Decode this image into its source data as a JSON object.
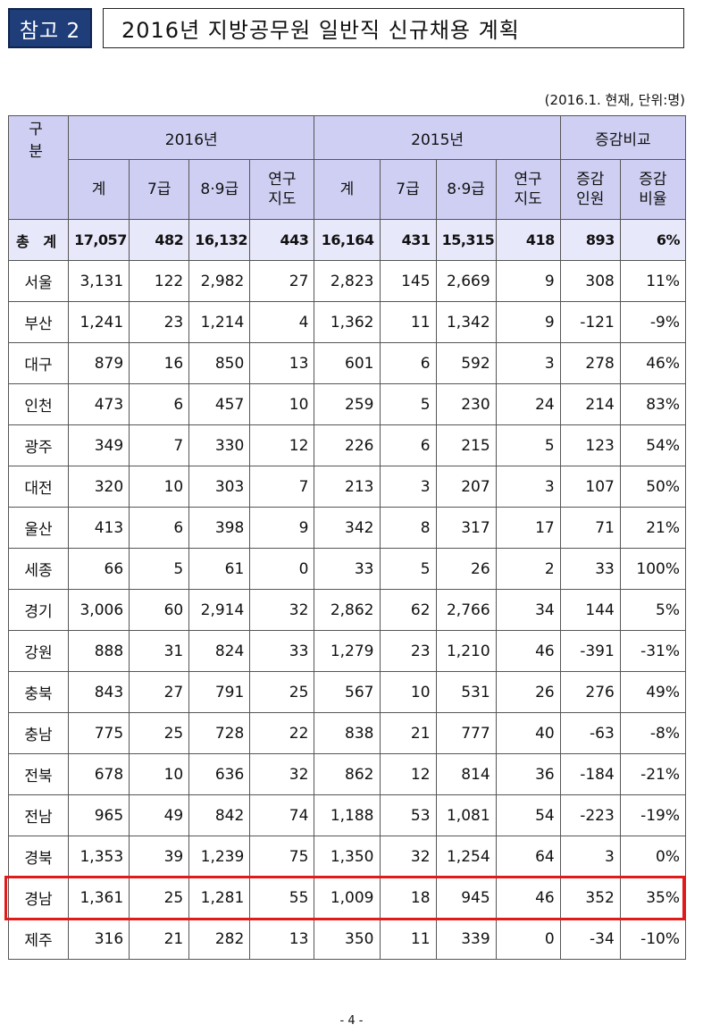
{
  "header": {
    "badge": "참고 2",
    "title": "2016년 지방공무원 일반직 신규채용 계획"
  },
  "note": "(2016.1. 현재, 단위:명)",
  "table": {
    "corner": "구 분",
    "groups": [
      "2016년",
      "2015년",
      "증감비교"
    ],
    "subheaders": [
      "계",
      "7급",
      "8·9급",
      "연구\n지도",
      "계",
      "7급",
      "8·9급",
      "연구\n지도",
      "증감\n인원",
      "증감\n비율"
    ],
    "total": {
      "label": "총 계",
      "cells": [
        "17,057",
        "482",
        "16,132",
        "443",
        "16,164",
        "431",
        "15,315",
        "418",
        "893",
        "6%"
      ]
    },
    "rows": [
      {
        "label": "서울",
        "cells": [
          "3,131",
          "122",
          "2,982",
          "27",
          "2,823",
          "145",
          "2,669",
          "9",
          "308",
          "11%"
        ]
      },
      {
        "label": "부산",
        "cells": [
          "1,241",
          "23",
          "1,214",
          "4",
          "1,362",
          "11",
          "1,342",
          "9",
          "-121",
          "-9%"
        ]
      },
      {
        "label": "대구",
        "cells": [
          "879",
          "16",
          "850",
          "13",
          "601",
          "6",
          "592",
          "3",
          "278",
          "46%"
        ]
      },
      {
        "label": "인천",
        "cells": [
          "473",
          "6",
          "457",
          "10",
          "259",
          "5",
          "230",
          "24",
          "214",
          "83%"
        ]
      },
      {
        "label": "광주",
        "cells": [
          "349",
          "7",
          "330",
          "12",
          "226",
          "6",
          "215",
          "5",
          "123",
          "54%"
        ]
      },
      {
        "label": "대전",
        "cells": [
          "320",
          "10",
          "303",
          "7",
          "213",
          "3",
          "207",
          "3",
          "107",
          "50%"
        ]
      },
      {
        "label": "울산",
        "cells": [
          "413",
          "6",
          "398",
          "9",
          "342",
          "8",
          "317",
          "17",
          "71",
          "21%"
        ]
      },
      {
        "label": "세종",
        "cells": [
          "66",
          "5",
          "61",
          "0",
          "33",
          "5",
          "26",
          "2",
          "33",
          "100%"
        ]
      },
      {
        "label": "경기",
        "cells": [
          "3,006",
          "60",
          "2,914",
          "32",
          "2,862",
          "62",
          "2,766",
          "34",
          "144",
          "5%"
        ]
      },
      {
        "label": "강원",
        "cells": [
          "888",
          "31",
          "824",
          "33",
          "1,279",
          "23",
          "1,210",
          "46",
          "-391",
          "-31%"
        ]
      },
      {
        "label": "충북",
        "cells": [
          "843",
          "27",
          "791",
          "25",
          "567",
          "10",
          "531",
          "26",
          "276",
          "49%"
        ]
      },
      {
        "label": "충남",
        "cells": [
          "775",
          "25",
          "728",
          "22",
          "838",
          "21",
          "777",
          "40",
          "-63",
          "-8%"
        ]
      },
      {
        "label": "전북",
        "cells": [
          "678",
          "10",
          "636",
          "32",
          "862",
          "12",
          "814",
          "36",
          "-184",
          "-21%"
        ]
      },
      {
        "label": "전남",
        "cells": [
          "965",
          "49",
          "842",
          "74",
          "1,188",
          "53",
          "1,081",
          "54",
          "-223",
          "-19%"
        ]
      },
      {
        "label": "경북",
        "cells": [
          "1,353",
          "39",
          "1,239",
          "75",
          "1,350",
          "32",
          "1,254",
          "64",
          "3",
          "0%"
        ]
      },
      {
        "label": "경남",
        "cells": [
          "1,361",
          "25",
          "1,281",
          "55",
          "1,009",
          "18",
          "945",
          "46",
          "352",
          "35%"
        ]
      },
      {
        "label": "제주",
        "cells": [
          "316",
          "21",
          "282",
          "13",
          "350",
          "11",
          "339",
          "0",
          "-34",
          "-10%"
        ]
      }
    ],
    "highlight_color": "#e21a1a"
  },
  "page_number": "- 4 -"
}
